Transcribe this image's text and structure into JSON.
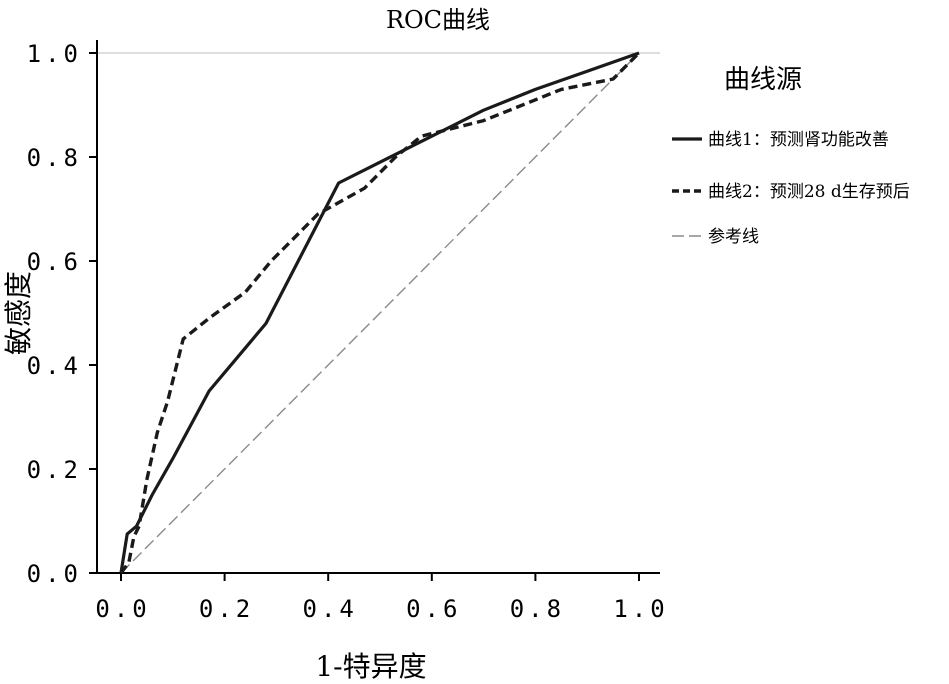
{
  "chart_data": {
    "type": "line",
    "title": "ROC曲线",
    "xlabel": "1-特异度",
    "ylabel": "敏感度",
    "xlim": [
      0,
      1
    ],
    "ylim": [
      0,
      1
    ],
    "xticks": [
      "0.0",
      "0.2",
      "0.4",
      "0.6",
      "0.8",
      "1.0"
    ],
    "yticks": [
      "0.0",
      "0.2",
      "0.4",
      "0.6",
      "0.8",
      "1.0"
    ],
    "grid": false,
    "legend": {
      "title": "曲线源",
      "position": "right"
    },
    "series": [
      {
        "name": "曲线1：预测肾功能改善",
        "style": "solid",
        "color": "#1a1a1a",
        "x": [
          0.0,
          0.008,
          0.012,
          0.03,
          0.06,
          0.1,
          0.17,
          0.28,
          0.42,
          0.6,
          0.7,
          0.8,
          0.9,
          1.0
        ],
        "y": [
          0.0,
          0.05,
          0.075,
          0.09,
          0.15,
          0.22,
          0.35,
          0.48,
          0.75,
          0.84,
          0.89,
          0.93,
          0.965,
          1.0
        ]
      },
      {
        "name": "曲线2：预测28 d生存预后",
        "style": "dashed",
        "color": "#1a1a1a",
        "x": [
          0.0,
          0.015,
          0.025,
          0.035,
          0.05,
          0.07,
          0.09,
          0.12,
          0.17,
          0.24,
          0.29,
          0.38,
          0.47,
          0.53,
          0.58,
          0.7,
          0.8,
          0.85,
          0.95,
          0.99,
          1.0
        ],
        "y": [
          0.0,
          0.02,
          0.07,
          0.09,
          0.18,
          0.27,
          0.33,
          0.45,
          0.49,
          0.54,
          0.6,
          0.69,
          0.74,
          0.8,
          0.84,
          0.87,
          0.91,
          0.93,
          0.95,
          0.99,
          1.0
        ]
      },
      {
        "name": "参考线",
        "style": "longdash",
        "color": "#8a8a8a",
        "x": [
          0,
          1
        ],
        "y": [
          0,
          1
        ]
      }
    ]
  }
}
